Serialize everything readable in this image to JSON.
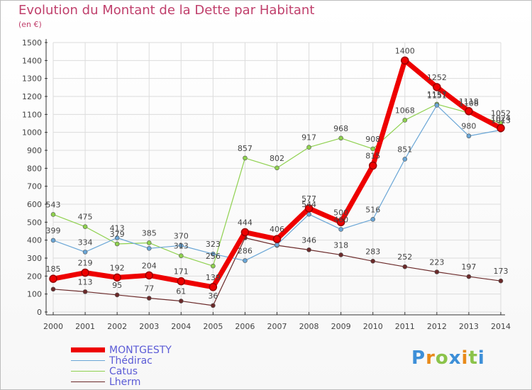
{
  "page": {
    "title": "Evolution du Montant de la Dette par Habitant",
    "subtitle": "(en €)",
    "logo": "Proxiti"
  },
  "colors": {
    "title": "#c0406c",
    "axis": "#333333",
    "grid": "#dcdcdc",
    "text": "#444444"
  },
  "chart_data": {
    "type": "line",
    "title": "Evolution du Montant de la Dette par Habitant",
    "subtitle": "(en €)",
    "x": [
      "2000",
      "2001",
      "2002",
      "2003",
      "2004",
      "2005",
      "2006",
      "2007",
      "2008",
      "2009",
      "2010",
      "2011",
      "2012",
      "2013",
      "2014"
    ],
    "yticks": [
      "0",
      "100",
      "200",
      "300",
      "400",
      "500",
      "600",
      "700",
      "800",
      "900",
      "1000",
      "1100",
      "1200",
      "1300",
      "1400",
      "1500"
    ],
    "ylim": [
      0,
      1500
    ],
    "grid": true,
    "legend_position": "bottom-left",
    "series": [
      {
        "name": "Lherm",
        "color": "#6b2a2a",
        "line_width": 1.2,
        "values": [
          127,
          113,
          95,
          77,
          61,
          36,
          413,
          371,
          346,
          318,
          283,
          252,
          223,
          197,
          173
        ],
        "labels": [
          "",
          "113",
          "95",
          "77",
          "61",
          "36",
          "",
          "",
          "346",
          "318",
          "283",
          "252",
          "223",
          "197",
          "173"
        ]
      },
      {
        "name": "Catus",
        "color": "#8fd14f",
        "line_width": 1.2,
        "values": [
          543,
          475,
          379,
          385,
          313,
          256,
          857,
          802,
          917,
          968,
          908,
          1068,
          1157,
          1108,
          1052
        ],
        "labels": [
          "543",
          "475",
          "379",
          "385",
          "313",
          "256",
          "857",
          "802",
          "917",
          "968",
          "908",
          "1068",
          "1157",
          "1108",
          "1052"
        ]
      },
      {
        "name": "Thédirac",
        "color": "#6aa6d6",
        "line_width": 1.2,
        "values": [
          399,
          334,
          413,
          354,
          370,
          323,
          286,
          374,
          544,
          460,
          516,
          851,
          1151,
          980,
          1013
        ],
        "labels": [
          "399",
          "334",
          "413",
          "",
          "370",
          "323",
          "286",
          "",
          "544",
          "460",
          "516",
          "851",
          "1151",
          "980",
          "1013"
        ]
      },
      {
        "name": "MONTGESTY",
        "color": "#ee0000",
        "line_width": 7,
        "values": [
          185,
          219,
          192,
          204,
          171,
          139,
          444,
          406,
          577,
          500,
          815,
          1400,
          1252,
          1118,
          1024
        ],
        "labels": [
          "185",
          "219",
          "192",
          "204",
          "171",
          "139",
          "444",
          "406",
          "577",
          "500",
          "815",
          "1400",
          "1252",
          "1118",
          "1024"
        ]
      }
    ]
  },
  "legend": [
    {
      "label": "MONTGESTY",
      "color": "#ee0000",
      "text_color": "#5b5bd6",
      "thickness": 7
    },
    {
      "label": "Thédirac",
      "color": "#6aa6d6",
      "text_color": "#5b5bd6",
      "thickness": 1
    },
    {
      "label": "Catus",
      "color": "#8fd14f",
      "text_color": "#5b5bd6",
      "thickness": 1
    },
    {
      "label": "Lherm",
      "color": "#6b2a2a",
      "text_color": "#5b5bd6",
      "thickness": 1
    }
  ]
}
